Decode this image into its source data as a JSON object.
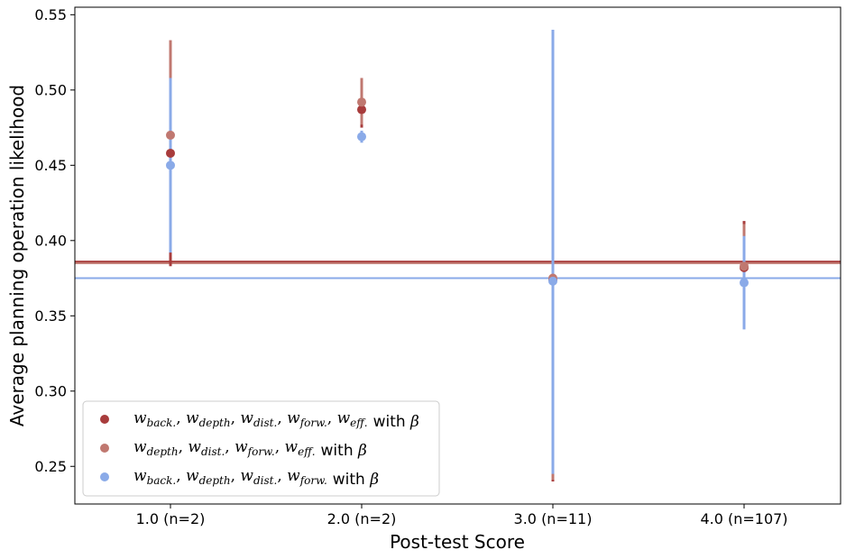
{
  "chart_data": {
    "type": "scatter",
    "xlabel": "Post-test Score",
    "ylabel": "Average planning operation likelihood",
    "categories": [
      "1.0 (n=2)",
      "2.0 (n=2)",
      "3.0 (n=11)",
      "4.0 (n=107)"
    ],
    "ylim": [
      0.225,
      0.555
    ],
    "yticks": [
      "0.25",
      "0.30",
      "0.35",
      "0.40",
      "0.45",
      "0.50",
      "0.55"
    ],
    "ytick_values": [
      0.25,
      0.3,
      0.35,
      0.4,
      0.45,
      0.5,
      0.55
    ],
    "grid": false,
    "legend_position": "lower-left",
    "series": [
      {
        "name": "w_back., w_depth, w_dist., w_forw., w_eff. with β",
        "color": "#a83c3c",
        "values": [
          0.458,
          0.487,
          0.374,
          0.382
        ],
        "err_low": [
          0.383,
          0.475,
          0.24,
          0.38
        ],
        "err_high": [
          0.533,
          0.5,
          0.54,
          0.413
        ],
        "hline": 0.386
      },
      {
        "name": "w_depth, w_dist., w_forw., w_eff. with β",
        "color": "#c07870",
        "values": [
          0.47,
          0.492,
          0.375,
          0.383
        ],
        "err_low": [
          0.408,
          0.477,
          0.241,
          0.381
        ],
        "err_high": [
          0.533,
          0.508,
          0.538,
          0.411
        ],
        "hline": 0.385
      },
      {
        "name": "w_back., w_depth, w_dist., w_forw. with β",
        "color": "#8aaae8",
        "values": [
          0.45,
          0.469,
          0.373,
          0.372
        ],
        "err_low": [
          0.392,
          0.465,
          0.245,
          0.341
        ],
        "err_high": [
          0.508,
          0.473,
          0.54,
          0.403
        ],
        "hline": 0.375
      }
    ],
    "legend": [
      {
        "parts": [
          [
            "w",
            "back."
          ],
          [
            "w",
            "depth"
          ],
          [
            "w",
            "dist."
          ],
          [
            "w",
            "forw."
          ],
          [
            "w",
            "eff."
          ]
        ],
        "suffix": "with",
        "beta": "β"
      },
      {
        "parts": [
          [
            "w",
            "depth"
          ],
          [
            "w",
            "dist."
          ],
          [
            "w",
            "forw."
          ],
          [
            "w",
            "eff."
          ]
        ],
        "suffix": "with",
        "beta": "β"
      },
      {
        "parts": [
          [
            "w",
            "back."
          ],
          [
            "w",
            "depth"
          ],
          [
            "w",
            "dist."
          ],
          [
            "w",
            "forw."
          ]
        ],
        "suffix": "with",
        "beta": "β"
      }
    ]
  }
}
